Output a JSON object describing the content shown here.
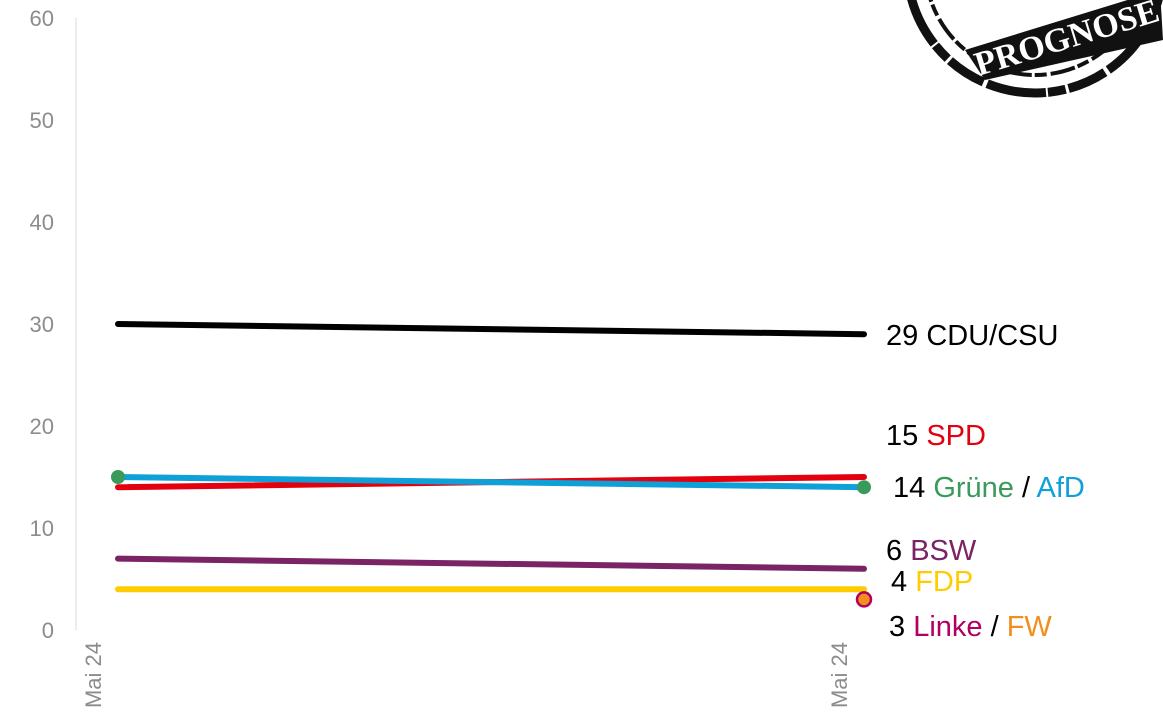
{
  "chart_data": {
    "type": "line",
    "x": [
      "Mai 24",
      "Mai 24"
    ],
    "ylim": [
      0,
      60
    ],
    "yticks": [
      0,
      10,
      20,
      30,
      40,
      50,
      60
    ],
    "grid": false,
    "series": [
      {
        "name": "CDU/CSU",
        "values": [
          30,
          29
        ],
        "color": "#000000"
      },
      {
        "name": "SPD",
        "values": [
          14,
          15
        ],
        "color": "#e3000f"
      },
      {
        "name": "Grüne",
        "values": [
          15,
          14
        ],
        "color": "#3a9a5b"
      },
      {
        "name": "AfD",
        "values": [
          15,
          14
        ],
        "color": "#0fa0d8"
      },
      {
        "name": "BSW",
        "values": [
          7,
          6
        ],
        "color": "#7b2465"
      },
      {
        "name": "FDP",
        "values": [
          4,
          4
        ],
        "color": "#ffcc00"
      },
      {
        "name": "Linke",
        "values": [
          null,
          3
        ],
        "color": "#b1005f"
      },
      {
        "name": "FW",
        "values": [
          null,
          3
        ],
        "color": "#f28e1e"
      }
    ],
    "end_labels": [
      {
        "value": "29",
        "parts": [
          {
            "text": "CDU/CSU",
            "color": "#000000"
          }
        ]
      },
      {
        "value": "15",
        "parts": [
          {
            "text": "SPD",
            "color": "#e3000f"
          }
        ]
      },
      {
        "value": "14",
        "parts": [
          {
            "text": "Grüne",
            "color": "#3a9a5b"
          },
          {
            "text": " / ",
            "color": "#000000"
          },
          {
            "text": "AfD",
            "color": "#0fa0d8"
          }
        ]
      },
      {
        "value": "6",
        "parts": [
          {
            "text": "BSW",
            "color": "#7b2465"
          }
        ]
      },
      {
        "value": "4",
        "parts": [
          {
            "text": "FDP",
            "color": "#ffcc00"
          }
        ]
      },
      {
        "value": "3",
        "parts": [
          {
            "text": "Linke",
            "color": "#b1005f"
          },
          {
            "text": " / ",
            "color": "#000000"
          },
          {
            "text": "FW",
            "color": "#f28e1e"
          }
        ]
      }
    ],
    "stamp": {
      "text": "PROGNOSE",
      "color": "#111111"
    }
  }
}
